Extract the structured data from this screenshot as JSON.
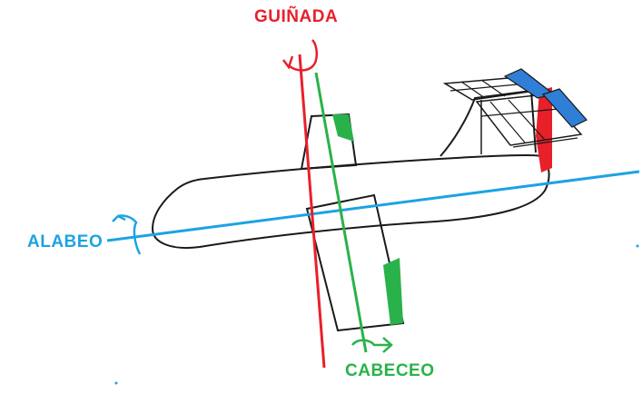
{
  "labels": {
    "yaw": "GUIÑADA",
    "roll": "ALABEO",
    "pitch": "CABECEO"
  },
  "colors": {
    "yaw": "#e8202a",
    "roll": "#1ca3e3",
    "pitch": "#2ab24a",
    "elevator": "#2f7fd6",
    "outline": "#1a1a1a",
    "background": "#ffffff"
  }
}
